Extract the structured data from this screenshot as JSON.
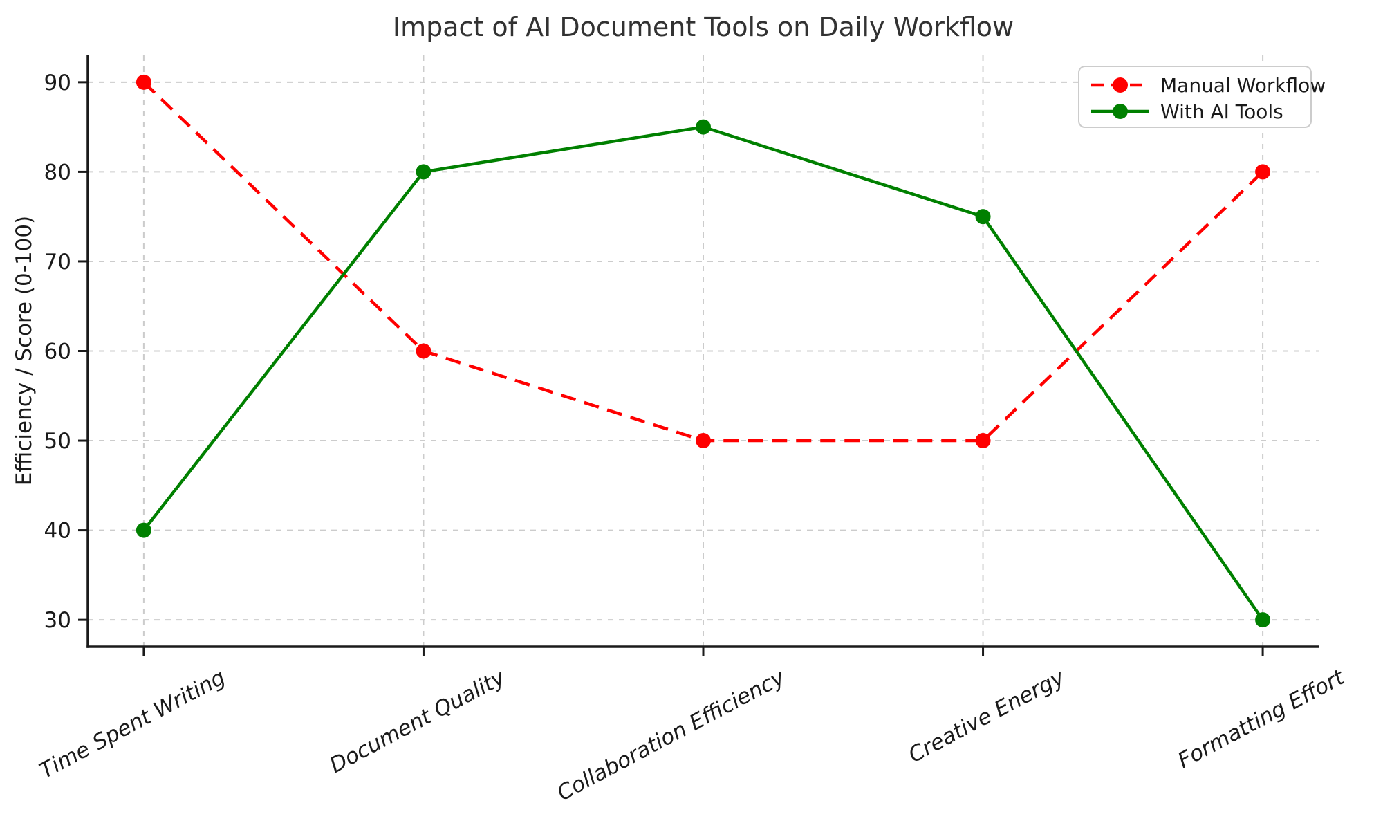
{
  "chart_data": {
    "type": "line",
    "title": "Impact of AI Document Tools on Daily Workflow",
    "xlabel": "",
    "ylabel": "Efficiency / Score (0-100)",
    "categories": [
      "Time Spent Writing",
      "Document Quality",
      "Collaboration Efficiency",
      "Creative Energy",
      "Formatting Effort"
    ],
    "series": [
      {
        "name": "Manual Workflow",
        "values": [
          90,
          60,
          50,
          50,
          80
        ],
        "color": "#ff0000",
        "style": "dashed",
        "marker": "circle"
      },
      {
        "name": "With AI Tools",
        "values": [
          40,
          80,
          85,
          75,
          30
        ],
        "color": "#008000",
        "style": "solid",
        "marker": "circle"
      }
    ],
    "yticks": [
      30,
      40,
      50,
      60,
      70,
      80,
      90
    ],
    "ylim": [
      27,
      93
    ],
    "grid": true,
    "grid_style": "dashed",
    "legend_position": "upper right",
    "xtick_rotation_deg": 28,
    "xtick_style": "italic"
  },
  "colors": {
    "background": "#ffffff",
    "grid": "#cccccc",
    "spine": "#1a1a1a",
    "tick_label": "#1a1a1a",
    "title": "#323232",
    "legend_border": "#cccccc",
    "legend_background": "#ffffff"
  }
}
